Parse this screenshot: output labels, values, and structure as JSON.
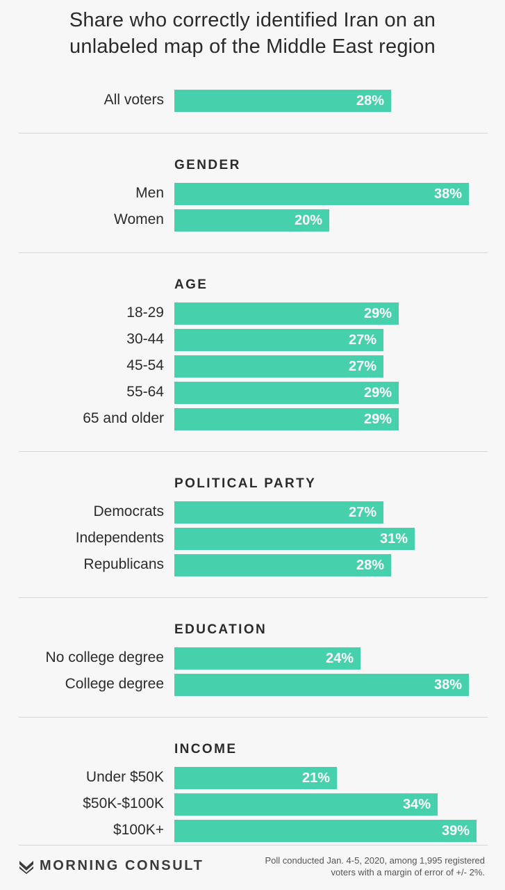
{
  "title_lines": [
    "Share who correctly identified Iran on an",
    "unlabeled map of the Middle East region"
  ],
  "bar_color": "#46d1ac",
  "chart_data": {
    "type": "bar",
    "orientation": "horizontal",
    "title": "Share who correctly identified Iran on an unlabeled map of the Middle East region",
    "xlim": [
      0,
      39
    ],
    "unit": "%",
    "groups": [
      {
        "heading": "",
        "items": [
          {
            "label": "All voters",
            "value": 28,
            "value_label": "28%"
          }
        ]
      },
      {
        "heading": "GENDER",
        "items": [
          {
            "label": "Men",
            "value": 38,
            "value_label": "38%"
          },
          {
            "label": "Women",
            "value": 20,
            "value_label": "20%"
          }
        ]
      },
      {
        "heading": "AGE",
        "items": [
          {
            "label": "18-29",
            "value": 29,
            "value_label": "29%"
          },
          {
            "label": "30-44",
            "value": 27,
            "value_label": "27%"
          },
          {
            "label": "45-54",
            "value": 27,
            "value_label": "27%"
          },
          {
            "label": "55-64",
            "value": 29,
            "value_label": "29%"
          },
          {
            "label": "65 and older",
            "value": 29,
            "value_label": "29%"
          }
        ]
      },
      {
        "heading": "POLITICAL PARTY",
        "items": [
          {
            "label": "Democrats",
            "value": 27,
            "value_label": "27%"
          },
          {
            "label": "Independents",
            "value": 31,
            "value_label": "31%"
          },
          {
            "label": "Republicans",
            "value": 28,
            "value_label": "28%"
          }
        ]
      },
      {
        "heading": "EDUCATION",
        "items": [
          {
            "label": "No college degree",
            "value": 24,
            "value_label": "24%"
          },
          {
            "label": "College degree",
            "value": 38,
            "value_label": "38%"
          }
        ]
      },
      {
        "heading": "INCOME",
        "items": [
          {
            "label": "Under $50K",
            "value": 21,
            "value_label": "21%"
          },
          {
            "label": "$50K-$100K",
            "value": 34,
            "value_label": "34%"
          },
          {
            "label": "$100K+",
            "value": 39,
            "value_label": "39%"
          }
        ]
      }
    ]
  },
  "footer": {
    "brand": "MORNING CONSULT",
    "note_lines": [
      "Poll conducted Jan. 4-5, 2020, among 1,995 registered",
      "voters with a margin of error of +/- 2%."
    ]
  }
}
